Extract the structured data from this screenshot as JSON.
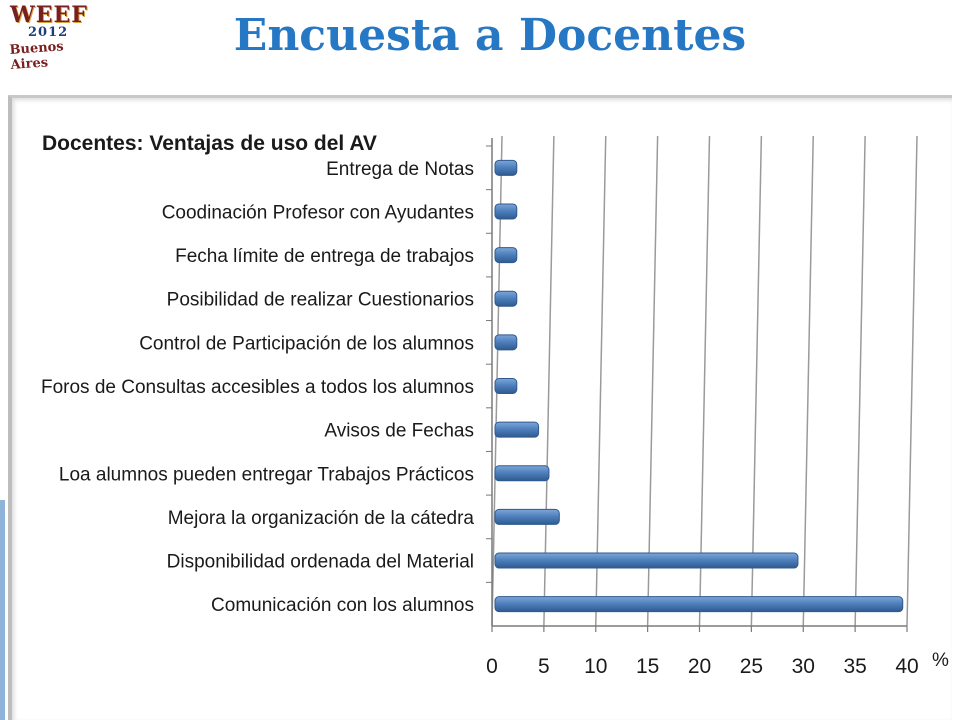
{
  "slide": {
    "title": "Encuesta a Docentes",
    "logo": {
      "line1": "WEEF",
      "line2": "2012",
      "line3": "Buenos Aires"
    }
  },
  "chart_data": {
    "type": "bar",
    "orientation": "horizontal",
    "title": "Docentes:  Ventajas de uso del AV",
    "categories": [
      "Comunicación con los alumnos",
      "Disponibilidad ordenada del Material",
      "Mejora la organización de la cátedra",
      "Loa alumnos pueden entregar Trabajos Prácticos",
      "Avisos de Fechas",
      "Foros de Consultas accesibles a todos los alumnos",
      "Control de Participación de los alumnos",
      "Posibilidad de realizar Cuestionarios",
      "Fecha límite de entrega de trabajos",
      "Coodinación Profesor con Ayudantes",
      "Entrega de Notas"
    ],
    "values": [
      39.3,
      29.2,
      6.2,
      5.2,
      4.2,
      2.1,
      2.1,
      2.1,
      2.1,
      2.1,
      2.1
    ],
    "xlim": [
      0,
      40
    ],
    "xticks": [
      "0",
      "5",
      "10",
      "15",
      "20",
      "25",
      "30",
      "35",
      "40"
    ],
    "xunit": "%",
    "grid": true,
    "bar_color": "#4f81bd"
  }
}
